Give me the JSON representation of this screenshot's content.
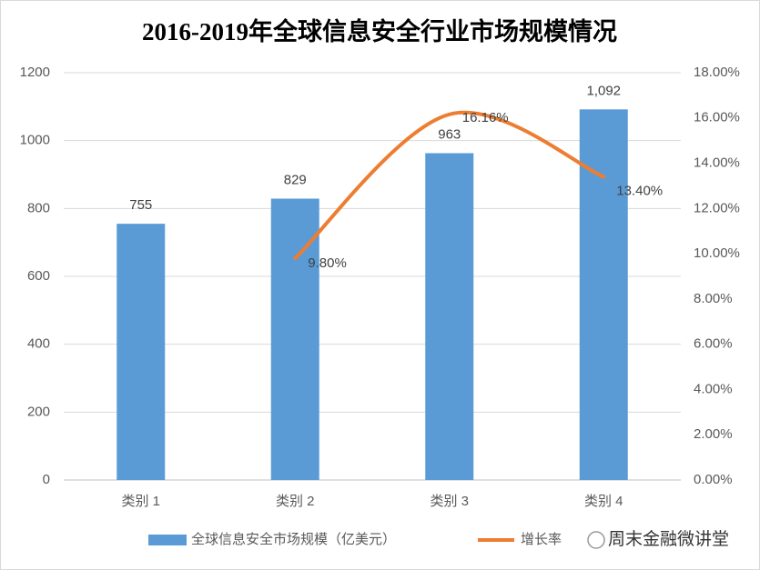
{
  "chart_data": {
    "type": "bar",
    "title": "2016-2019年全球信息安全行业市场规模情况",
    "categories": [
      "类别 1",
      "类别 2",
      "类别 3",
      "类别 4"
    ],
    "series": [
      {
        "name": "全球信息安全市场规模（亿美元）",
        "color": "#5b9bd5",
        "values": [
          755,
          829,
          963,
          1092
        ],
        "value_labels": [
          "755",
          "829",
          "963",
          "1,092"
        ]
      },
      {
        "name": "增长率",
        "type": "line",
        "axis": "y2",
        "color": "#ed7d31",
        "values": [
          null,
          9.8,
          16.16,
          13.4
        ],
        "value_labels": [
          null,
          "9.80%",
          "16.16%",
          "13.40%"
        ]
      }
    ],
    "ylim": [
      0,
      1200
    ],
    "yticks": [
      0,
      200,
      400,
      600,
      800,
      1000,
      1200
    ],
    "y2lim": [
      0,
      18
    ],
    "y2ticks": [
      {
        "value": 0,
        "label": "0.00%"
      },
      {
        "value": 2,
        "label": "2.00%"
      },
      {
        "value": 4,
        "label": "4.00%"
      },
      {
        "value": 6,
        "label": "6.00%"
      },
      {
        "value": 8,
        "label": "8.00%"
      },
      {
        "value": 10,
        "label": "10.00%"
      },
      {
        "value": 12,
        "label": "12.00%"
      },
      {
        "value": 14,
        "label": "14.00%"
      },
      {
        "value": 16,
        "label": "16.00%"
      },
      {
        "value": 18,
        "label": "18.00%"
      }
    ],
    "grid": true,
    "legend": "bottom",
    "watermark": "周末金融微讲堂"
  }
}
